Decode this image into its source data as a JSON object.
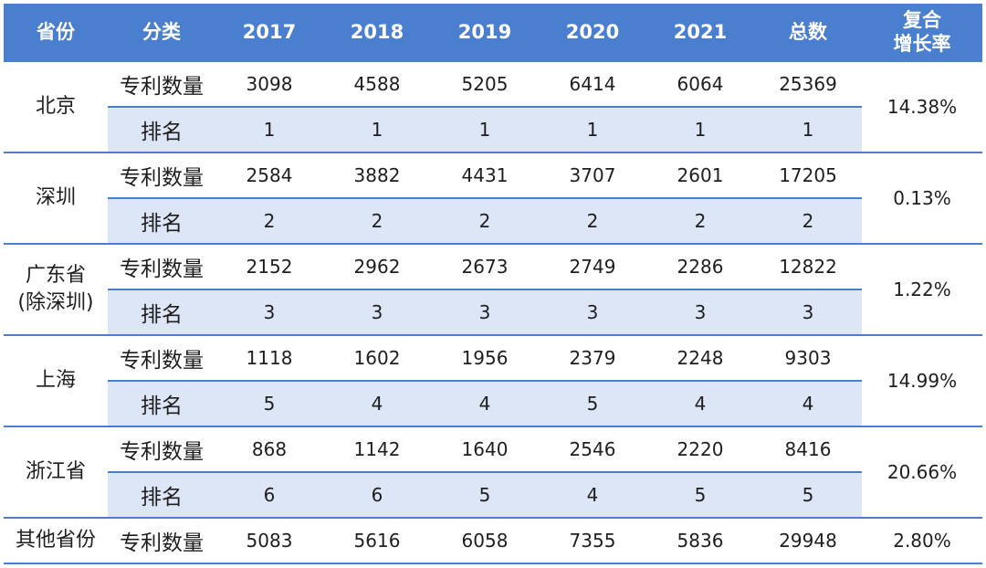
{
  "headers": {
    "province": "省份",
    "category": "分类",
    "y2017": "2017",
    "y2018": "2018",
    "y2019": "2019",
    "y2020": "2020",
    "y2021": "2021",
    "total": "总数",
    "cagr_line1": "复合",
    "cagr_line2": "增长率"
  },
  "labels": {
    "count": "专利数量",
    "rank": "排名"
  },
  "rows": [
    {
      "name_line1": "北京",
      "name_line2": "",
      "counts": [
        "3098",
        "4588",
        "5205",
        "6414",
        "6064",
        "25369"
      ],
      "ranks": [
        "1",
        "1",
        "1",
        "1",
        "1",
        "1"
      ],
      "cagr": "14.38%"
    },
    {
      "name_line1": "深圳",
      "name_line2": "",
      "counts": [
        "2584",
        "3882",
        "4431",
        "3707",
        "2601",
        "17205"
      ],
      "ranks": [
        "2",
        "2",
        "2",
        "2",
        "2",
        "2"
      ],
      "cagr": "0.13%"
    },
    {
      "name_line1": "广东省",
      "name_line2": "(除深圳)",
      "counts": [
        "2152",
        "2962",
        "2673",
        "2749",
        "2286",
        "12822"
      ],
      "ranks": [
        "3",
        "3",
        "3",
        "3",
        "3",
        "3"
      ],
      "cagr": "1.22%"
    },
    {
      "name_line1": "上海",
      "name_line2": "",
      "counts": [
        "1118",
        "1602",
        "1956",
        "2379",
        "2248",
        "9303"
      ],
      "ranks": [
        "5",
        "4",
        "4",
        "5",
        "4",
        "4"
      ],
      "cagr": "14.99%"
    },
    {
      "name_line1": "浙江省",
      "name_line2": "",
      "counts": [
        "868",
        "1142",
        "1640",
        "2546",
        "2220",
        "8416"
      ],
      "ranks": [
        "6",
        "6",
        "5",
        "4",
        "5",
        "5"
      ],
      "cagr": "20.66%"
    }
  ],
  "other": {
    "name": "其他省份",
    "counts": [
      "5083",
      "5616",
      "6058",
      "7355",
      "5836",
      "29948"
    ],
    "cagr": "2.80%"
  },
  "colors": {
    "header_bg": "#4a7fd0",
    "rank_row_bg": "#dde6f6",
    "border": "#4a7fd0"
  }
}
